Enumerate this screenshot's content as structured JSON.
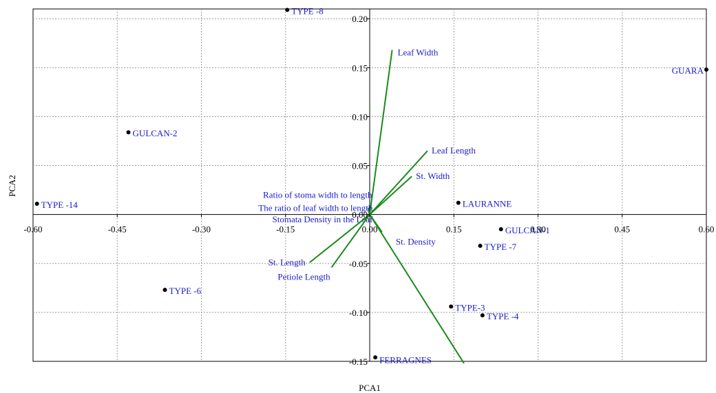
{
  "chart_data": {
    "type": "scatter",
    "xlabel": "PCA1",
    "ylabel": "PCA2",
    "xlim": [
      -0.6,
      0.6
    ],
    "ylim": [
      -0.15,
      0.21
    ],
    "xticks": [
      -0.6,
      -0.45,
      -0.3,
      -0.15,
      0.0,
      0.15,
      0.3,
      0.45,
      0.6
    ],
    "xtick_labels": [
      "-0.60",
      "-0.45",
      "-0.30",
      "-0.15",
      "0.00",
      "0.15",
      "0.30",
      "0.45",
      "0.60"
    ],
    "yticks": [
      -0.15,
      -0.1,
      -0.05,
      0.0,
      0.05,
      0.1,
      0.15,
      0.2
    ],
    "ytick_labels": [
      "-0.15",
      "-0.10",
      "-0.05",
      "0.00",
      "0.05",
      "0.10",
      "0.15",
      "0.20"
    ],
    "grid": true,
    "points": [
      {
        "label": "TYPE -8",
        "x": -0.147,
        "y": 0.209
      },
      {
        "label": "GUARA",
        "x": 0.6,
        "y": 0.148
      },
      {
        "label": "GULCAN-2",
        "x": -0.43,
        "y": 0.084
      },
      {
        "label": "TYPE -14",
        "x": -0.593,
        "y": 0.011
      },
      {
        "label": "LAURANNE",
        "x": 0.158,
        "y": 0.012
      },
      {
        "label": "GULCAN-1",
        "x": 0.234,
        "y": -0.015
      },
      {
        "label": "TYPE -7",
        "x": 0.197,
        "y": -0.032
      },
      {
        "label": "TYPE -6",
        "x": -0.365,
        "y": -0.077
      },
      {
        "label": "TYPE-3",
        "x": 0.145,
        "y": -0.094
      },
      {
        "label": "TYPE -4",
        "x": 0.201,
        "y": -0.103
      },
      {
        "label": "FERRAGNES",
        "x": 0.01,
        "y": -0.146
      }
    ],
    "vectors": [
      {
        "label": "Leaf Width",
        "x": 0.04,
        "y": 0.168
      },
      {
        "label": "Leaf Length",
        "x": 0.103,
        "y": 0.065
      },
      {
        "label": "St. Width",
        "x": 0.075,
        "y": 0.039
      },
      {
        "label": "Ratio of stoma width to length",
        "x": -0.003,
        "y": 0.007
      },
      {
        "label": "The ratio of leaf width to length",
        "x": -0.002,
        "y": 0.003
      },
      {
        "label": "Stomata Density in the Leaf",
        "x": -0.002,
        "y": -0.001
      },
      {
        "label": "St. Density",
        "x": 0.022,
        "y": -0.018
      },
      {
        "label": "St. Length",
        "x": -0.107,
        "y": -0.049
      },
      {
        "label": "Petiole Length",
        "x": -0.068,
        "y": -0.054
      },
      {
        "label": "",
        "x": 0.168,
        "y": -0.152
      }
    ],
    "colors": {
      "point": "#000000",
      "label": "#1a1acc",
      "vector": "#1a8a1a",
      "grid": "#9a9a9a",
      "axis": "#000000"
    }
  }
}
